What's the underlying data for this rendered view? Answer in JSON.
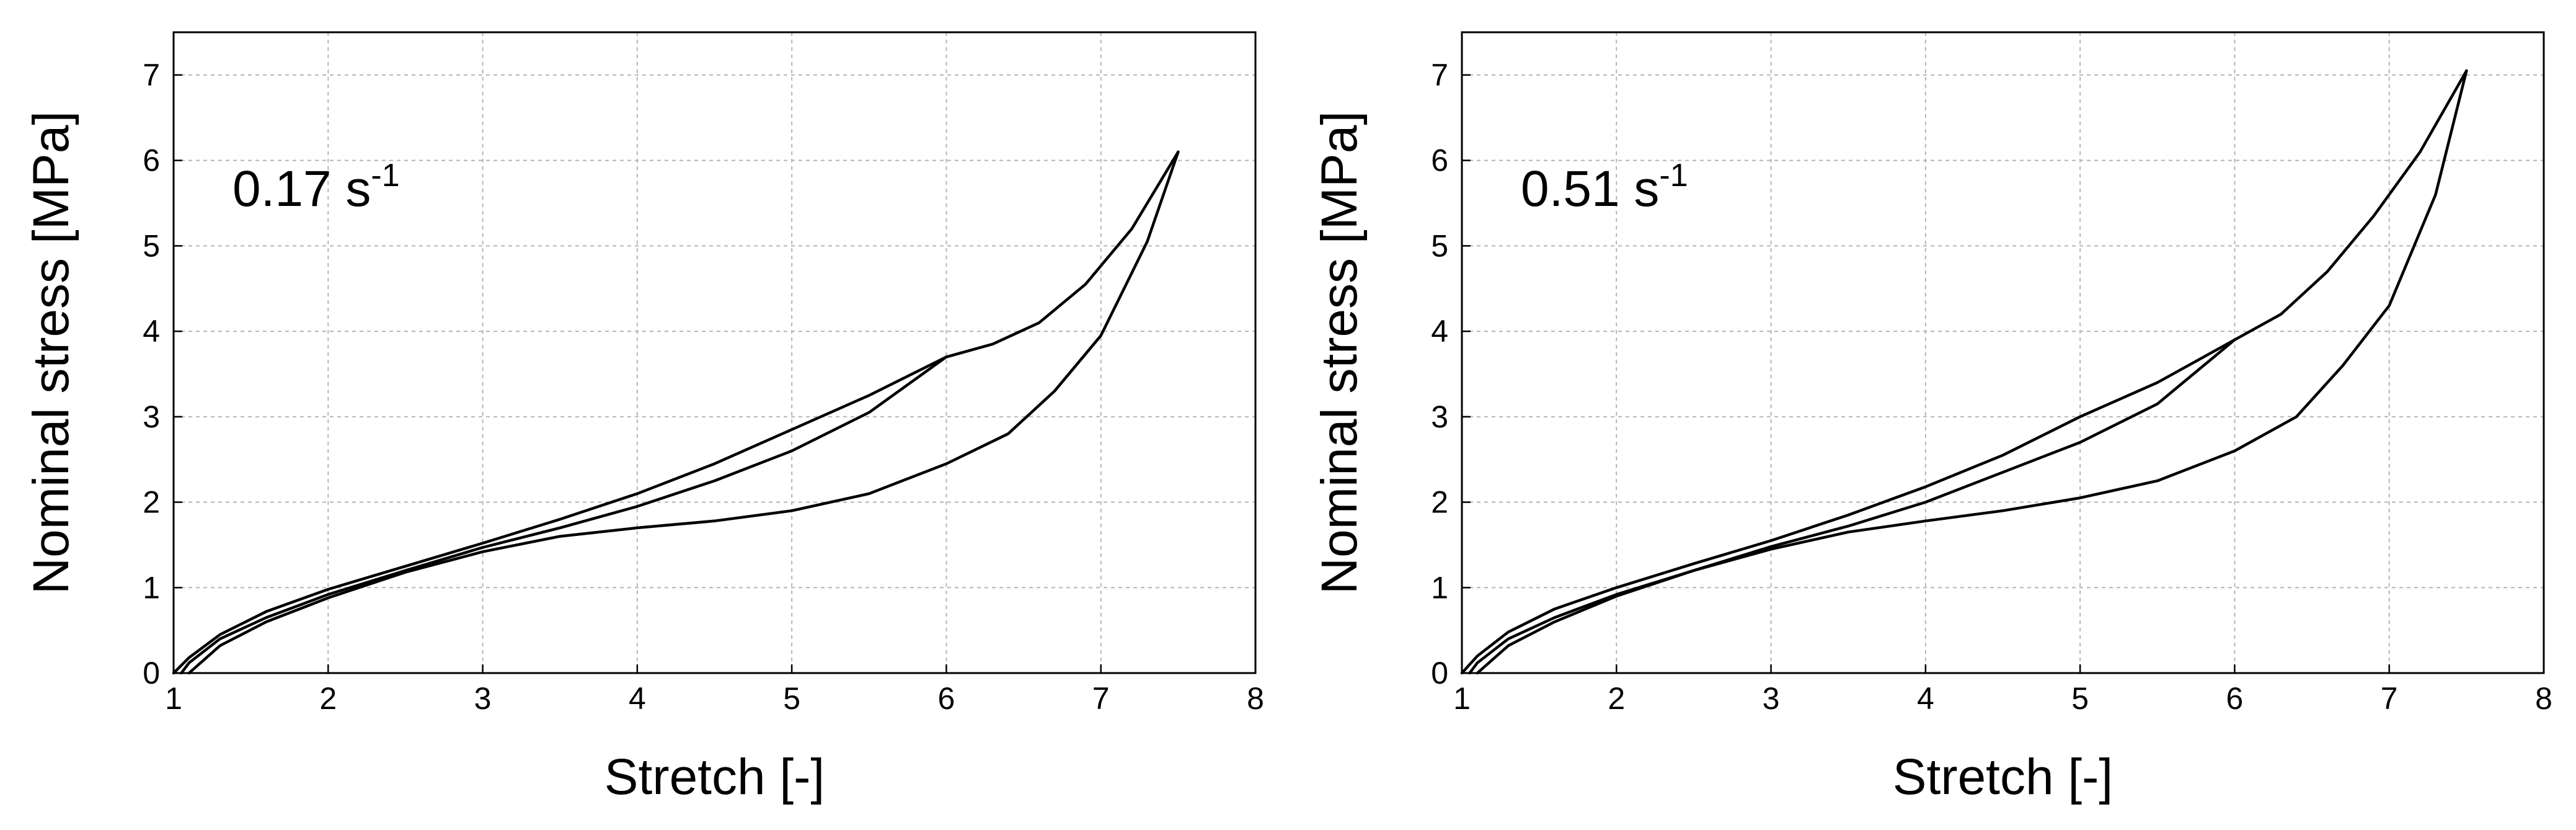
{
  "chart_data": [
    {
      "type": "line",
      "annotation": {
        "value": "0.17 s",
        "exponent": "-1"
      },
      "xlabel": "Stretch [-]",
      "ylabel": "Nominal stress [MPa]",
      "xlim": [
        1,
        8
      ],
      "ylim": [
        0,
        7.5
      ],
      "xticks": [
        1,
        2,
        3,
        4,
        5,
        6,
        7,
        8
      ],
      "yticks": [
        0,
        1,
        2,
        3,
        4,
        5,
        6,
        7
      ],
      "grid": true,
      "color": "#000000",
      "series": [
        {
          "x": [
            1,
            1.1,
            1.3,
            1.6,
            2,
            2.5,
            3,
            3.5,
            4,
            4.5,
            5,
            5.5,
            6
          ],
          "y": [
            0,
            0.18,
            0.45,
            0.72,
            0.98,
            1.25,
            1.52,
            1.8,
            2.1,
            2.45,
            2.85,
            3.25,
            3.7
          ]
        },
        {
          "x": [
            6,
            5.5,
            5,
            4.5,
            4,
            3.5,
            3,
            2.5,
            2,
            1.6,
            1.3,
            1.1,
            1.05
          ],
          "y": [
            3.7,
            3.05,
            2.6,
            2.25,
            1.95,
            1.7,
            1.47,
            1.2,
            0.92,
            0.65,
            0.4,
            0.12,
            0
          ]
        },
        {
          "x": [
            6,
            6.3,
            6.6,
            6.9,
            7.2,
            7.5
          ],
          "y": [
            3.7,
            3.85,
            4.1,
            4.55,
            5.2,
            6.1
          ]
        },
        {
          "x": [
            7.5,
            7.3,
            7,
            6.7,
            6.4,
            6,
            5.5,
            5,
            4.5,
            4,
            3.5,
            3,
            2.5,
            2,
            1.6,
            1.3,
            1.1
          ],
          "y": [
            6.1,
            5.05,
            3.95,
            3.3,
            2.8,
            2.45,
            2.1,
            1.9,
            1.78,
            1.7,
            1.6,
            1.42,
            1.18,
            0.88,
            0.6,
            0.32,
            0
          ]
        }
      ]
    },
    {
      "type": "line",
      "annotation": {
        "value": "0.51 s",
        "exponent": "-1"
      },
      "xlabel": "Stretch [-]",
      "ylabel": "Nominal stress [MPa]",
      "xlim": [
        1,
        8
      ],
      "ylim": [
        0,
        7.5
      ],
      "xticks": [
        1,
        2,
        3,
        4,
        5,
        6,
        7,
        8
      ],
      "yticks": [
        0,
        1,
        2,
        3,
        4,
        5,
        6,
        7
      ],
      "grid": true,
      "color": "#000000",
      "series": [
        {
          "x": [
            1,
            1.1,
            1.3,
            1.6,
            2,
            2.5,
            3,
            3.5,
            4,
            4.5,
            5,
            5.5,
            6
          ],
          "y": [
            0,
            0.2,
            0.48,
            0.75,
            1.0,
            1.28,
            1.55,
            1.85,
            2.18,
            2.55,
            3.0,
            3.4,
            3.9
          ]
        },
        {
          "x": [
            6,
            5.5,
            5,
            4.5,
            4,
            3.5,
            3,
            2.5,
            2,
            1.6,
            1.3,
            1.1,
            1.05
          ],
          "y": [
            3.9,
            3.15,
            2.7,
            2.35,
            2.0,
            1.72,
            1.48,
            1.2,
            0.92,
            0.65,
            0.4,
            0.12,
            0
          ]
        },
        {
          "x": [
            6,
            6.3,
            6.6,
            6.9,
            7.2,
            7.5
          ],
          "y": [
            3.9,
            4.2,
            4.7,
            5.35,
            6.1,
            7.05
          ]
        },
        {
          "x": [
            7.5,
            7.3,
            7,
            6.7,
            6.4,
            6,
            5.5,
            5,
            4.5,
            4,
            3.5,
            3,
            2.5,
            2,
            1.6,
            1.3,
            1.1
          ],
          "y": [
            7.05,
            5.6,
            4.3,
            3.6,
            3.0,
            2.6,
            2.25,
            2.05,
            1.9,
            1.78,
            1.65,
            1.45,
            1.2,
            0.9,
            0.6,
            0.32,
            0
          ]
        }
      ]
    }
  ]
}
